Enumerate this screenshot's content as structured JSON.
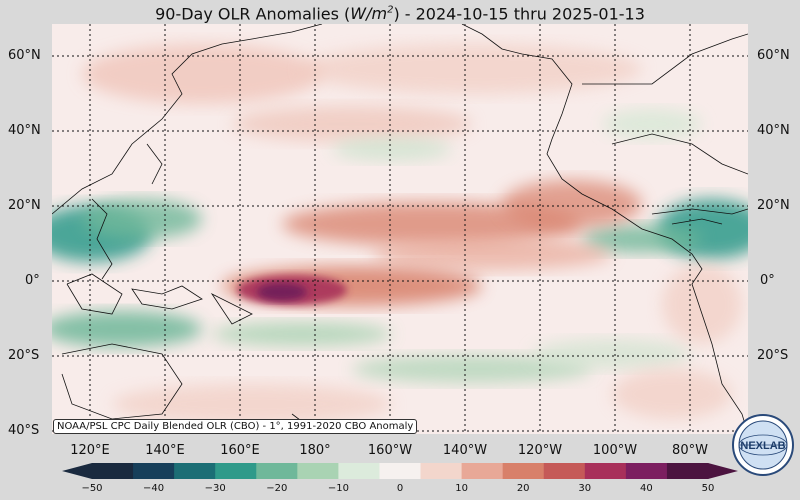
{
  "title_main": "90-Day OLR Anomalies (",
  "title_unit": "W/m",
  "title_sup": "2",
  "title_tail": ") - 2024-10-15 thru 2025-01-13",
  "credit": "NOAA/PSL CPC Daily Blended OLR (CBO) - 1°, 1991-2020 CBO Anomaly",
  "lat_labels": [
    "60°N",
    "40°N",
    "20°N",
    "0°",
    "20°S",
    "40°S"
  ],
  "lon_labels": [
    "120°E",
    "140°E",
    "160°E",
    "180°",
    "160°W",
    "140°W",
    "120°W",
    "100°W",
    "80°W"
  ],
  "colorbar": {
    "ticks": [
      "−50",
      "−40",
      "−30",
      "−20",
      "−10",
      "0",
      "10",
      "20",
      "30",
      "40",
      "50"
    ],
    "colors": [
      "#1a2a3f",
      "#173f5a",
      "#1c6e75",
      "#2f9a8a",
      "#6fb89a",
      "#a9d3b3",
      "#dcebdc",
      "#f6f1ef",
      "#f3d6cc",
      "#e8a897",
      "#d8806a",
      "#c55a58",
      "#a8305a",
      "#7c1f60",
      "#4c1440"
    ]
  },
  "logo_text": "NEXLAB",
  "colors": {
    "negative": "#2f9a8a",
    "positive": "#c55a58",
    "strong_positive": "#6e1a5a",
    "background": "#d9d9d9"
  }
}
